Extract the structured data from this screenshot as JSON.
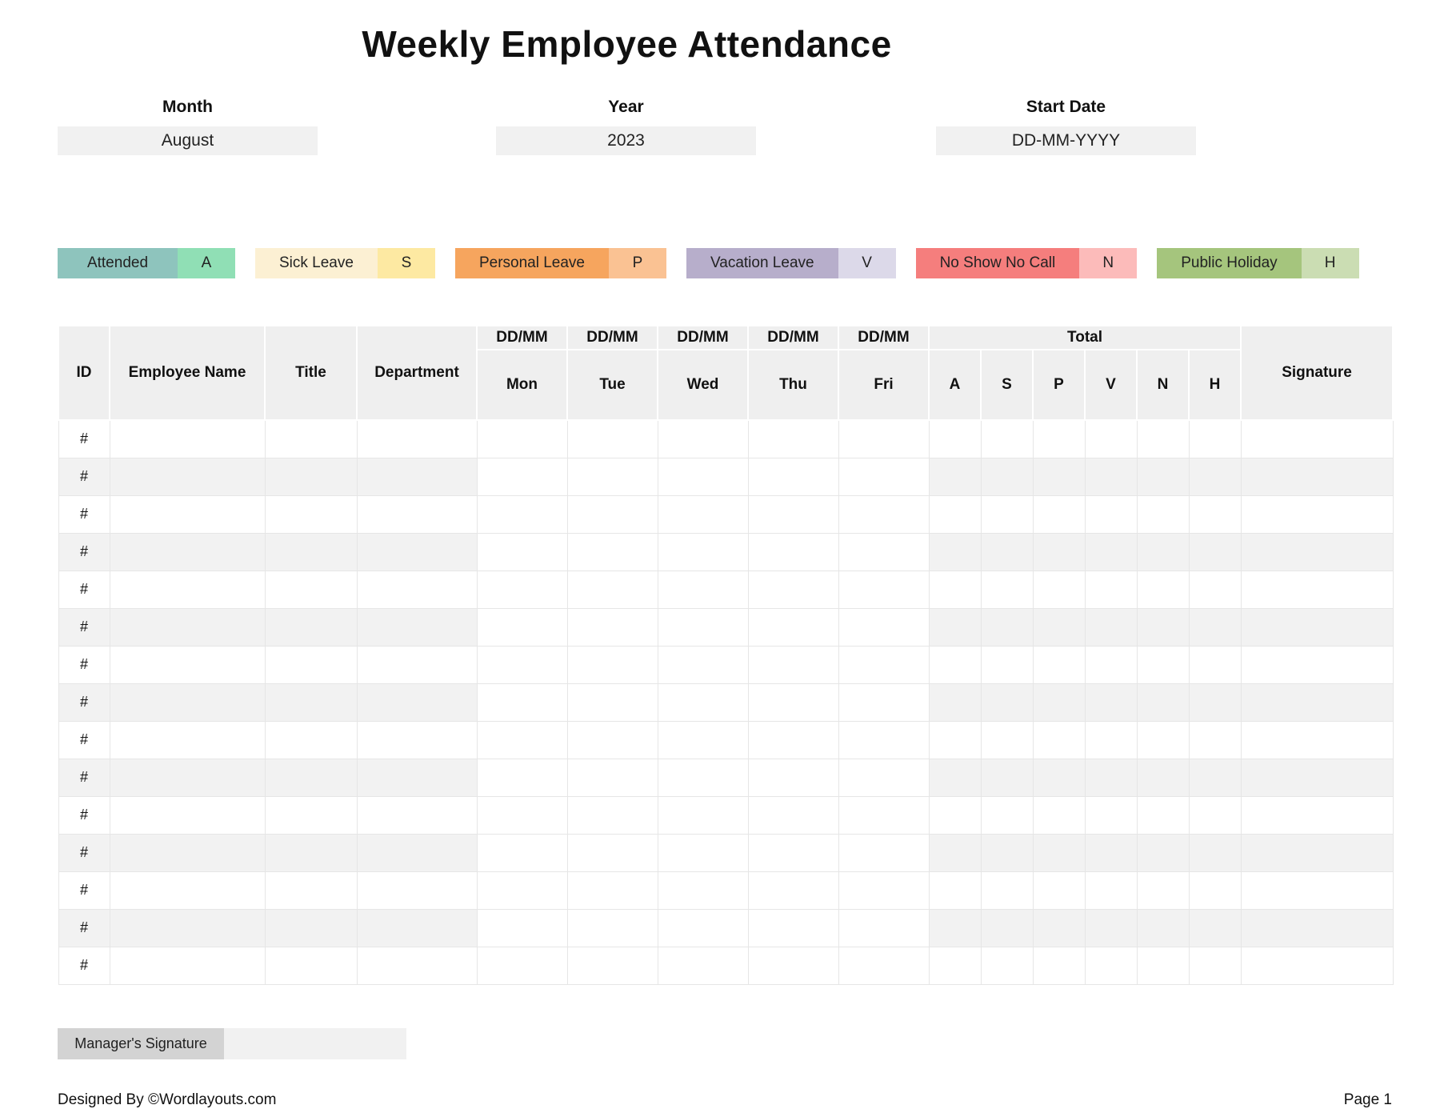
{
  "page": {
    "title": "Weekly Employee Attendance",
    "footer_left": "Designed By ©Wordlayouts.com",
    "footer_right": "Page 1"
  },
  "fields": {
    "month": {
      "label": "Month",
      "value": "August"
    },
    "year": {
      "label": "Year",
      "value": "2023"
    },
    "start_date": {
      "label": "Start Date",
      "value": "DD-MM-YYYY"
    }
  },
  "legend": [
    {
      "label": "Attended",
      "code": "A",
      "label_color": "#8ec4bd",
      "code_color": "#90dfb5"
    },
    {
      "label": "Sick Leave",
      "code": "S",
      "label_color": "#fcf0d3",
      "code_color": "#fde9a2"
    },
    {
      "label": "Personal Leave",
      "code": "P",
      "label_color": "#f6a55e",
      "code_color": "#fac293"
    },
    {
      "label": "Vacation Leave",
      "code": "V",
      "label_color": "#b7aecb",
      "code_color": "#dcd9e9"
    },
    {
      "label": "No Show No Call",
      "code": "N",
      "label_color": "#f57e7d",
      "code_color": "#fcbbba"
    },
    {
      "label": "Public Holiday",
      "code": "H",
      "label_color": "#a5c57d",
      "code_color": "#cbddb3"
    }
  ],
  "table": {
    "static_headers": [
      "ID",
      "Employee Name",
      "Title",
      "Department"
    ],
    "date_placeholder": "DD/MM",
    "days": [
      "Mon",
      "Tue",
      "Wed",
      "Thu",
      "Fri"
    ],
    "total_header": "Total",
    "total_codes": [
      "A",
      "S",
      "P",
      "V",
      "N",
      "H"
    ],
    "signature_header": "Signature",
    "row_marker": "#",
    "row_count": 15
  },
  "manager": {
    "label": "Manager's Signature"
  }
}
